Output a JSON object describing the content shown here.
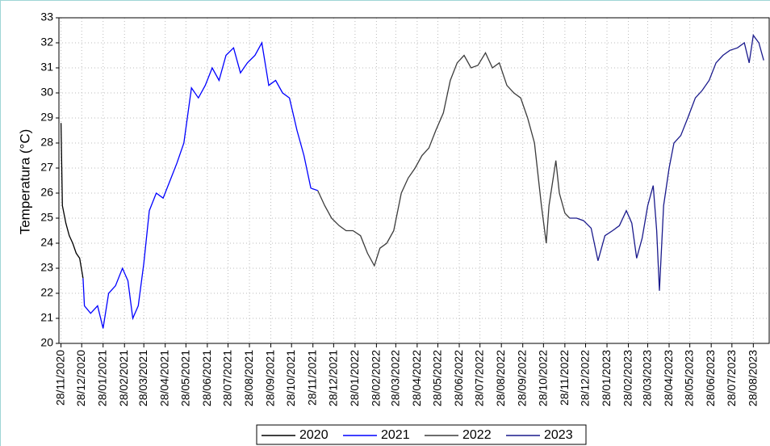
{
  "chart_data": {
    "type": "line",
    "ylabel": "Temperatura (°C)",
    "grid": true,
    "legend": "bottom",
    "xlim": [
      "25/11/2020",
      "20/09/2023"
    ],
    "ylim": [
      20,
      33
    ],
    "yticks": [
      20,
      21,
      22,
      23,
      24,
      25,
      26,
      27,
      28,
      29,
      30,
      31,
      32,
      33
    ],
    "xticks": [
      "28/11/2020",
      "28/12/2020",
      "28/01/2021",
      "28/02/2021",
      "28/03/2021",
      "28/04/2021",
      "28/05/2021",
      "28/06/2021",
      "28/07/2021",
      "28/08/2021",
      "28/09/2021",
      "28/10/2021",
      "28/11/2021",
      "28/12/2021",
      "28/01/2022",
      "28/02/2022",
      "28/03/2022",
      "28/04/2022",
      "28/05/2022",
      "28/06/2022",
      "28/07/2022",
      "28/08/2022",
      "28/09/2022",
      "28/10/2022",
      "28/11/2022",
      "28/12/2022",
      "28/01/2023",
      "28/02/2023",
      "28/03/2023",
      "28/04/2023",
      "28/05/2023",
      "28/06/2023",
      "28/07/2023",
      "28/08/2023"
    ],
    "series": [
      {
        "name": "2020",
        "color": "#000000",
        "x": [
          "28/11/2020",
          "30/11/2020",
          "05/12/2020",
          "10/12/2020",
          "15/12/2020",
          "20/12/2020",
          "25/12/2020",
          "30/12/2020"
        ],
        "values": [
          28.8,
          25.5,
          24.8,
          24.3,
          24.0,
          23.6,
          23.4,
          22.6
        ]
      },
      {
        "name": "2021",
        "color": "#0000ff",
        "x": [
          "30/12/2020",
          "01/01/2021",
          "10/01/2021",
          "20/01/2021",
          "28/01/2021",
          "05/02/2021",
          "15/02/2021",
          "25/02/2021",
          "05/03/2021",
          "12/03/2021",
          "20/03/2021",
          "28/03/2021",
          "05/04/2021",
          "15/04/2021",
          "25/04/2021",
          "05/05/2021",
          "15/05/2021",
          "25/05/2021",
          "05/06/2021",
          "15/06/2021",
          "25/06/2021",
          "05/07/2021",
          "15/07/2021",
          "25/07/2021",
          "05/08/2021",
          "15/08/2021",
          "25/08/2021",
          "05/09/2021",
          "15/09/2021",
          "25/09/2021",
          "05/10/2021",
          "15/10/2021",
          "25/10/2021",
          "05/11/2021",
          "15/11/2021",
          "25/11/2021",
          "05/12/2021"
        ],
        "values": [
          22.6,
          21.5,
          21.2,
          21.5,
          20.6,
          22.0,
          22.3,
          23.0,
          22.5,
          21.0,
          21.5,
          23.2,
          25.3,
          26.0,
          25.8,
          26.5,
          27.2,
          28.0,
          30.2,
          29.8,
          30.3,
          31.0,
          30.5,
          31.5,
          31.8,
          30.8,
          31.2,
          31.5,
          32.0,
          30.3,
          30.5,
          30.0,
          29.8,
          28.5,
          27.5,
          26.2,
          26.1
        ]
      },
      {
        "name": "2022",
        "color": "#3c3c3c",
        "x": [
          "05/12/2021",
          "15/12/2021",
          "25/12/2021",
          "05/01/2022",
          "15/01/2022",
          "25/01/2022",
          "05/02/2022",
          "15/02/2022",
          "25/02/2022",
          "05/03/2022",
          "15/03/2022",
          "25/03/2022",
          "05/04/2022",
          "15/04/2022",
          "25/04/2022",
          "05/05/2022",
          "15/05/2022",
          "25/05/2022",
          "05/06/2022",
          "15/06/2022",
          "25/06/2022",
          "05/07/2022",
          "15/07/2022",
          "25/07/2022",
          "05/08/2022",
          "15/08/2022",
          "25/08/2022",
          "05/09/2022",
          "15/09/2022",
          "25/09/2022",
          "05/10/2022",
          "15/10/2022",
          "25/10/2022",
          "01/11/2022",
          "05/11/2022",
          "15/11/2022",
          "20/11/2022",
          "28/11/2022",
          "05/12/2022"
        ],
        "values": [
          26.1,
          25.5,
          25.0,
          24.7,
          24.5,
          24.5,
          24.3,
          23.6,
          23.1,
          23.8,
          24.0,
          24.5,
          26.0,
          26.6,
          27.0,
          27.5,
          27.8,
          28.5,
          29.2,
          30.5,
          31.2,
          31.5,
          31.0,
          31.1,
          31.6,
          31.0,
          31.2,
          30.3,
          30.0,
          29.8,
          29.0,
          28.0,
          25.5,
          24.0,
          25.5,
          27.3,
          26.0,
          25.2,
          25.0
        ]
      },
      {
        "name": "2023",
        "color": "#1a1a8c",
        "x": [
          "05/12/2022",
          "15/12/2022",
          "25/12/2022",
          "05/01/2023",
          "15/01/2023",
          "25/01/2023",
          "05/02/2023",
          "15/02/2023",
          "25/02/2023",
          "05/03/2023",
          "12/03/2023",
          "20/03/2023",
          "28/03/2023",
          "05/04/2023",
          "10/04/2023",
          "14/04/2023",
          "20/04/2023",
          "28/04/2023",
          "05/05/2023",
          "15/05/2023",
          "25/05/2023",
          "05/06/2023",
          "15/06/2023",
          "25/06/2023",
          "05/07/2023",
          "15/07/2023",
          "25/07/2023",
          "05/08/2023",
          "15/08/2023",
          "22/08/2023",
          "28/08/2023",
          "05/09/2023",
          "12/09/2023"
        ],
        "values": [
          25.0,
          25.0,
          24.9,
          24.6,
          23.3,
          24.3,
          24.5,
          24.7,
          25.3,
          24.8,
          23.4,
          24.2,
          25.5,
          26.3,
          24.5,
          22.1,
          25.5,
          27.0,
          28.0,
          28.3,
          29.0,
          29.8,
          30.1,
          30.5,
          31.2,
          31.5,
          31.7,
          31.8,
          32.0,
          31.2,
          32.3,
          32.0,
          31.3
        ]
      }
    ]
  }
}
